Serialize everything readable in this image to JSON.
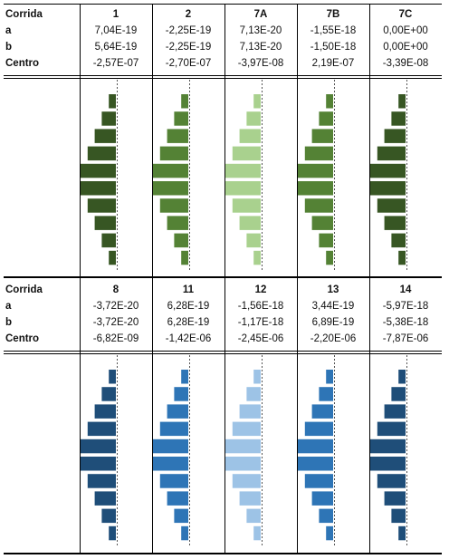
{
  "tables": [
    {
      "row_labels": [
        "Corrida",
        "a",
        "b",
        "Centro"
      ],
      "runs": [
        {
          "id": "1",
          "a": "7,04E-19",
          "b": "5,64E-19",
          "centro": "-2,57E-07"
        },
        {
          "id": "2",
          "a": "-2,25E-19",
          "b": "-2,25E-19",
          "centro": "-2,70E-07"
        },
        {
          "id": "7A",
          "a": "7,13E-20",
          "b": "7,13E-20",
          "centro": "-3,97E-08"
        },
        {
          "id": "7B",
          "a": "-1,55E-18",
          "b": "-1,50E-18",
          "centro": "2,19E-07"
        },
        {
          "id": "7C",
          "a": "0,00E+00",
          "b": "0,00E+00",
          "centro": "-3,39E-08"
        }
      ]
    },
    {
      "row_labels": [
        "Corrida",
        "a",
        "b",
        "Centro"
      ],
      "runs": [
        {
          "id": "8",
          "a": "-3,72E-20",
          "b": "-3,72E-20",
          "centro": "-6,82E-09"
        },
        {
          "id": "11",
          "a": "6,28E-19",
          "b": "6,28E-19",
          "centro": "-1,42E-06"
        },
        {
          "id": "12",
          "a": "-1,56E-18",
          "b": "-1,17E-18",
          "centro": "-2,45E-06"
        },
        {
          "id": "13",
          "a": "3,44E-19",
          "b": "6,89E-19",
          "centro": "-2,20E-06"
        },
        {
          "id": "14",
          "a": "-5,97E-18",
          "b": "-5,38E-18",
          "centro": "-7,87E-06"
        }
      ]
    }
  ],
  "chart_data": [
    {
      "type": "bar",
      "orientation": "horizontal",
      "values": [
        1,
        2,
        3,
        4,
        5,
        5,
        4,
        3,
        2,
        1
      ],
      "panels": [
        {
          "run": "1",
          "color": "#375623"
        },
        {
          "run": "2",
          "color": "#548235"
        },
        {
          "run": "7A",
          "color": "#a9d18e"
        },
        {
          "run": "7B",
          "color": "#548235"
        },
        {
          "run": "7C",
          "color": "#375623"
        }
      ]
    },
    {
      "type": "bar",
      "orientation": "horizontal",
      "values": [
        1,
        2,
        3,
        4,
        5,
        5,
        4,
        3,
        2,
        1
      ],
      "panels": [
        {
          "run": "8",
          "color": "#1f4e79"
        },
        {
          "run": "11",
          "color": "#2e75b6"
        },
        {
          "run": "12",
          "color": "#9dc3e6"
        },
        {
          "run": "13",
          "color": "#2e75b6"
        },
        {
          "run": "14",
          "color": "#1f4e79"
        }
      ]
    }
  ]
}
